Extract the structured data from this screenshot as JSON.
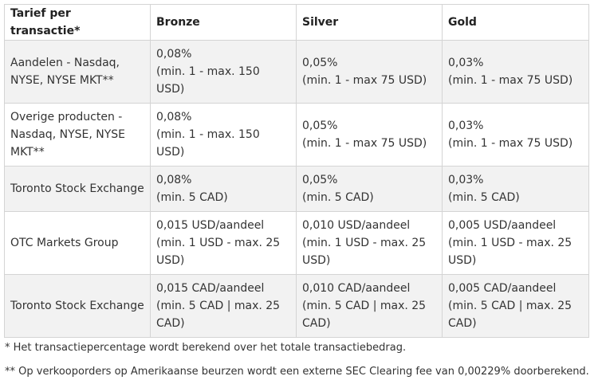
{
  "table": {
    "headers": [
      "Tarief per transactie*",
      "Bronze",
      "Silver",
      "Gold"
    ],
    "rows": [
      {
        "product": [
          "Aandelen - Nasdaq,",
          "NYSE, NYSE MKT**"
        ],
        "bronze": [
          "0,08%",
          "(min. 1 - max. 150",
          "USD)"
        ],
        "silver": [
          "0,05%",
          "(min. 1 - max 75 USD)"
        ],
        "gold": [
          "0,03%",
          "(min. 1 - max 75 USD)"
        ]
      },
      {
        "product": [
          "Overige producten -",
          "Nasdaq, NYSE, NYSE",
          "MKT**"
        ],
        "bronze": [
          "0,08%",
          "(min. 1 - max. 150",
          "USD)"
        ],
        "silver": [
          "0,05%",
          "(min. 1 - max 75 USD)"
        ],
        "gold": [
          "0,03%",
          "(min. 1 - max 75 USD)"
        ]
      },
      {
        "product": [
          "Toronto Stock Exchange"
        ],
        "bronze": [
          "0,08%",
          "(min. 5 CAD)"
        ],
        "silver": [
          "0,05%",
          "(min. 5 CAD)"
        ],
        "gold": [
          "0,03%",
          "(min. 5 CAD)"
        ]
      },
      {
        "product": [
          "OTC Markets Group"
        ],
        "bronze": [
          "0,015 USD/aandeel",
          "(min. 1 USD - max. 25",
          "USD)"
        ],
        "silver": [
          "0,010 USD/aandeel",
          "(min. 1 USD - max. 25",
          "USD)"
        ],
        "gold": [
          "0,005 USD/aandeel",
          "(min. 1 USD - max. 25",
          "USD)"
        ]
      },
      {
        "product": [
          "Toronto Stock Exchange"
        ],
        "bronze": [
          "0,015 CAD/aandeel",
          "(min. 5 CAD | max. 25",
          "CAD)"
        ],
        "silver": [
          "0,010 CAD/aandeel",
          "(min. 5 CAD | max. 25",
          "CAD)"
        ],
        "gold": [
          "0,005 CAD/aandeel",
          "(min. 5 CAD | max. 25",
          "CAD)"
        ]
      }
    ]
  },
  "footnotes": [
    "* Het transactiepercentage wordt berekend over het totale transactiebedrag.",
    "** Op verkooporders op Amerikaanse beurzen wordt een externe SEC Clearing fee van 0,00229% doorberekend."
  ],
  "colors": {
    "border": "#d4d4d4",
    "shade": "#f2f2f2",
    "text": "#333333"
  }
}
